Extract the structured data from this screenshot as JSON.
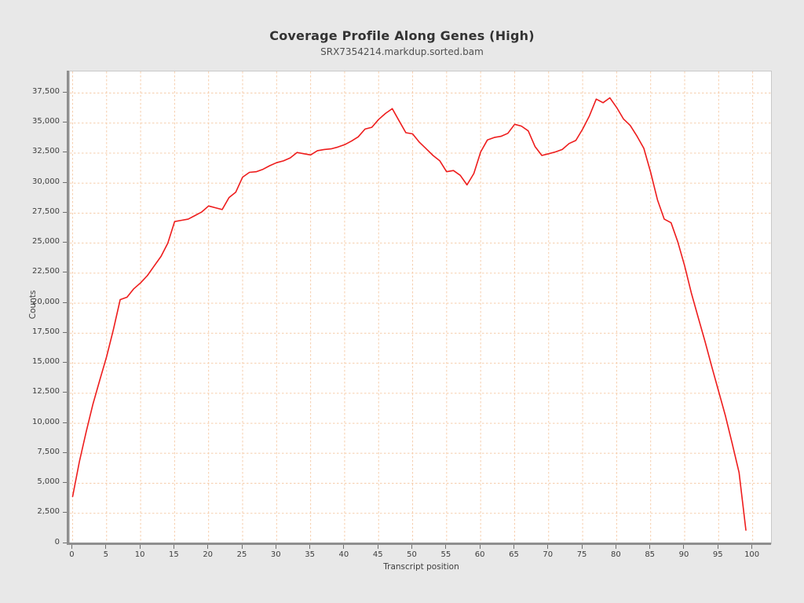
{
  "header": {
    "title": "Coverage Profile Along Genes (High)",
    "subtitle": "SRX7354214.markdup.sorted.bam"
  },
  "chart_data": {
    "type": "line",
    "title": "Coverage Profile Along Genes (High)",
    "subtitle": "SRX7354214.markdup.sorted.bam",
    "xlabel": "Transcript position",
    "ylabel": "Counts",
    "legend_position": "none",
    "grid": true,
    "grid_color": "#f6cdab",
    "line_color": "#ee1c1c",
    "plot_background": "#ffffff",
    "page_background": "#e8e8e8",
    "xlim": [
      -0.4,
      102.7
    ],
    "ylim": [
      0,
      39300
    ],
    "x_ticks": [
      0,
      5,
      10,
      15,
      20,
      25,
      30,
      35,
      40,
      45,
      50,
      55,
      60,
      65,
      70,
      75,
      80,
      85,
      90,
      95,
      100
    ],
    "y_ticks": [
      0,
      2500,
      5000,
      7500,
      10000,
      12500,
      15000,
      17500,
      20000,
      22500,
      25000,
      27500,
      30000,
      32500,
      35000,
      37500
    ],
    "x": [
      0,
      1,
      2,
      3,
      4,
      5,
      6,
      7,
      8,
      9,
      10,
      11,
      12,
      13,
      14,
      15,
      16,
      17,
      18,
      19,
      20,
      21,
      22,
      23,
      24,
      25,
      26,
      27,
      28,
      29,
      30,
      31,
      32,
      33,
      34,
      35,
      36,
      37,
      38,
      39,
      40,
      41,
      42,
      43,
      44,
      45,
      46,
      47,
      48,
      49,
      50,
      51,
      52,
      53,
      54,
      55,
      56,
      57,
      58,
      59,
      60,
      61,
      62,
      63,
      64,
      65,
      66,
      67,
      68,
      69,
      70,
      71,
      72,
      73,
      74,
      75,
      76,
      77,
      78,
      79,
      80,
      81,
      82,
      83,
      84,
      85,
      86,
      87,
      88,
      89,
      90,
      91,
      92,
      93,
      94,
      95,
      96,
      97,
      98,
      99
    ],
    "values": [
      3900,
      6800,
      9300,
      11600,
      13600,
      15550,
      17800,
      20300,
      20500,
      21200,
      21700,
      22300,
      23100,
      23900,
      25000,
      26800,
      26900,
      27000,
      27300,
      27600,
      28100,
      27950,
      27800,
      28800,
      29250,
      30500,
      30900,
      30950,
      31150,
      31450,
      31700,
      31850,
      32100,
      32550,
      32450,
      32350,
      32700,
      32800,
      32850,
      33000,
      33200,
      33500,
      33850,
      34500,
      34650,
      35300,
      35800,
      36200,
      35200,
      34200,
      34100,
      33400,
      32850,
      32300,
      31850,
      30950,
      31050,
      30650,
      29850,
      30800,
      32600,
      33600,
      33800,
      33900,
      34150,
      34900,
      34750,
      34350,
      33050,
      32300,
      32450,
      32600,
      32800,
      33300,
      33550,
      34500,
      35600,
      37000,
      36700,
      37100,
      36300,
      35350,
      34800,
      33900,
      32900,
      30900,
      28600,
      27000,
      26700,
      25100,
      23100,
      20800,
      18800,
      16800,
      14700,
      12650,
      10600,
      8300,
      5900,
      1100
    ]
  }
}
